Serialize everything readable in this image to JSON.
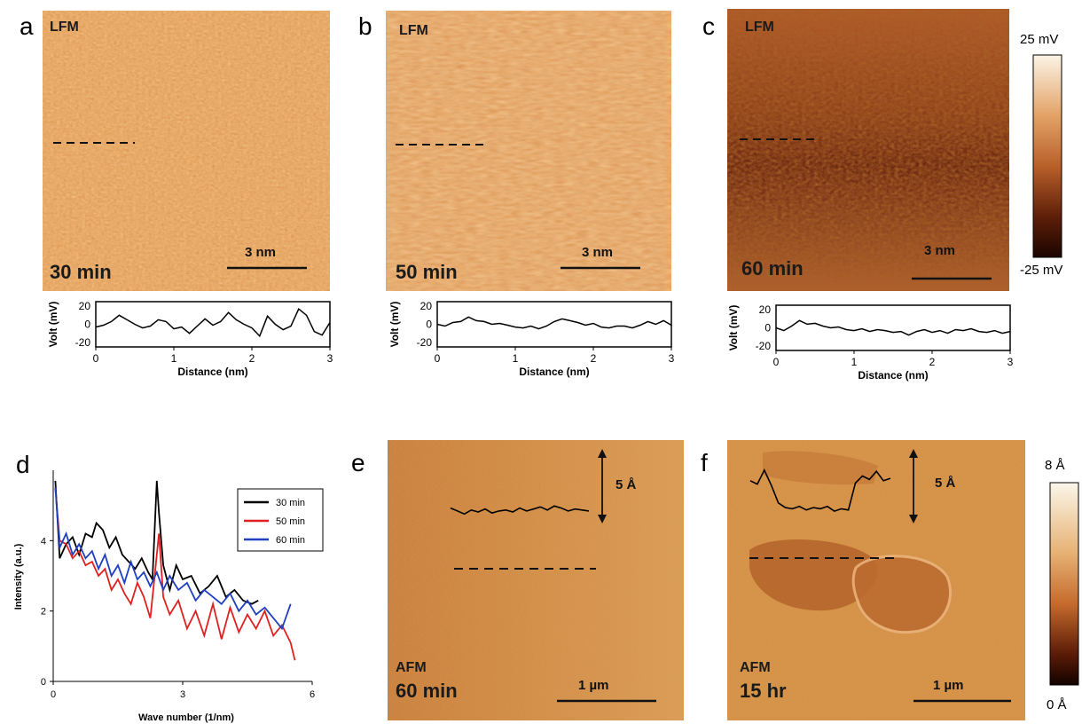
{
  "panels": {
    "a": {
      "letter": "a",
      "mode": "LFM",
      "time": "30 min",
      "scale": "3 nm"
    },
    "b": {
      "letter": "b",
      "mode": "LFM",
      "time": "50 min",
      "scale": "3 nm"
    },
    "c": {
      "letter": "c",
      "mode": "LFM",
      "time": "60 min",
      "scale": "3 nm"
    },
    "d": {
      "letter": "d"
    },
    "e": {
      "letter": "e",
      "mode": "AFM",
      "time": "60 min",
      "scale": "1 µm",
      "height": "5 Å"
    },
    "f": {
      "letter": "f",
      "mode": "AFM",
      "time": "15 hr",
      "scale": "1 µm",
      "height": "5 Å"
    }
  },
  "colorbar_lfm": {
    "max": "25 mV",
    "min": "-25 mV",
    "colors": [
      "#fbf4e6",
      "#e3a266",
      "#b8602a",
      "#5e1e08",
      "#1a0500"
    ]
  },
  "colorbar_afm": {
    "max": "8 Å",
    "min": "0 Å",
    "colors": [
      "#fbf6ea",
      "#e6b173",
      "#c56a2c",
      "#5a1b06",
      "#120300"
    ]
  },
  "profile_axes": {
    "xlabel": "Distance (nm)",
    "ylabel": "Volt (mV)",
    "yticks": [
      "20",
      "0",
      "-20"
    ],
    "xticks": [
      "0",
      "1",
      "2",
      "3"
    ]
  },
  "chart_data": [
    {
      "id": "profile-a",
      "type": "line",
      "xlabel": "Distance (nm)",
      "ylabel": "Volt (mV)",
      "xlim": [
        0,
        3
      ],
      "ylim": [
        -25,
        25
      ],
      "series": [
        {
          "x": [
            0,
            0.1,
            0.2,
            0.3,
            0.4,
            0.5,
            0.6,
            0.7,
            0.8,
            0.9,
            1.0,
            1.1,
            1.2,
            1.3,
            1.4,
            1.5,
            1.6,
            1.7,
            1.8,
            1.9,
            2.0,
            2.1,
            2.2,
            2.3,
            2.4,
            2.5,
            2.6,
            2.7,
            2.8,
            2.9,
            3.0
          ],
          "values": [
            -3,
            -1,
            3,
            10,
            5,
            0,
            -4,
            -2,
            5,
            3,
            -5,
            -3,
            -10,
            -2,
            6,
            -1,
            3,
            13,
            5,
            0,
            -4,
            -13,
            9,
            0,
            -6,
            -2,
            17,
            10,
            -8,
            -12,
            2
          ]
        }
      ]
    },
    {
      "id": "profile-b",
      "type": "line",
      "xlabel": "Distance (nm)",
      "ylabel": "Volt (mV)",
      "xlim": [
        0,
        3
      ],
      "ylim": [
        -25,
        25
      ],
      "series": [
        {
          "x": [
            0,
            0.1,
            0.2,
            0.3,
            0.4,
            0.5,
            0.6,
            0.7,
            0.8,
            0.9,
            1.0,
            1.1,
            1.2,
            1.3,
            1.4,
            1.5,
            1.6,
            1.7,
            1.8,
            1.9,
            2.0,
            2.1,
            2.2,
            2.3,
            2.4,
            2.5,
            2.6,
            2.7,
            2.8,
            2.9,
            3.0
          ],
          "values": [
            0,
            -2,
            2,
            3,
            8,
            4,
            3,
            0,
            1,
            -1,
            -3,
            -4,
            -2,
            -5,
            -2,
            3,
            6,
            4,
            2,
            -1,
            1,
            -3,
            -4,
            -2,
            -2,
            -4,
            -1,
            3,
            0,
            4,
            -1
          ]
        }
      ]
    },
    {
      "id": "profile-c",
      "type": "line",
      "xlabel": "Distance (nm)",
      "ylabel": "Volt (mV)",
      "xlim": [
        0,
        3
      ],
      "ylim": [
        -25,
        25
      ],
      "series": [
        {
          "x": [
            0,
            0.1,
            0.2,
            0.3,
            0.4,
            0.5,
            0.6,
            0.7,
            0.8,
            0.9,
            1.0,
            1.1,
            1.2,
            1.3,
            1.4,
            1.5,
            1.6,
            1.7,
            1.8,
            1.9,
            2.0,
            2.1,
            2.2,
            2.3,
            2.4,
            2.5,
            2.6,
            2.7,
            2.8,
            2.9,
            3.0
          ],
          "values": [
            0,
            -3,
            2,
            8,
            4,
            5,
            2,
            0,
            1,
            -2,
            -3,
            -1,
            -4,
            -2,
            -3,
            -5,
            -4,
            -8,
            -4,
            -2,
            -5,
            -3,
            -6,
            -2,
            -3,
            -1,
            -4,
            -5,
            -3,
            -6,
            -4
          ]
        }
      ]
    },
    {
      "id": "spectrum-d",
      "type": "line",
      "xlabel": "Wave number (1/nm)",
      "ylabel": "Intensity (a.u.)",
      "xlim": [
        0,
        6
      ],
      "ylim": [
        0,
        6
      ],
      "xticks": [
        "0",
        "3",
        "6"
      ],
      "yticks": [
        "0",
        "2",
        "4"
      ],
      "series": [
        {
          "name": "30 min",
          "color": "#000000",
          "x": [
            0.05,
            0.15,
            0.3,
            0.45,
            0.6,
            0.75,
            0.9,
            1.0,
            1.15,
            1.3,
            1.45,
            1.6,
            1.75,
            1.9,
            2.05,
            2.2,
            2.3,
            2.4,
            2.45,
            2.55,
            2.7,
            2.85,
            3.0,
            3.2,
            3.4,
            3.6,
            3.8,
            4.0,
            4.2,
            4.4,
            4.6,
            4.75
          ],
          "values": [
            5.7,
            3.5,
            3.9,
            4.1,
            3.6,
            4.2,
            4.1,
            4.5,
            4.3,
            3.8,
            4.1,
            3.6,
            3.4,
            3.2,
            3.5,
            3.1,
            2.9,
            5.7,
            4.8,
            3.3,
            2.6,
            3.3,
            2.9,
            3.0,
            2.5,
            2.7,
            3.0,
            2.4,
            2.6,
            2.3,
            2.2,
            2.3
          ]
        },
        {
          "name": "50 min",
          "color": "#e02020",
          "x": [
            0.05,
            0.15,
            0.3,
            0.45,
            0.6,
            0.75,
            0.9,
            1.05,
            1.2,
            1.35,
            1.5,
            1.65,
            1.8,
            1.95,
            2.1,
            2.25,
            2.35,
            2.45,
            2.55,
            2.7,
            2.9,
            3.1,
            3.3,
            3.5,
            3.7,
            3.9,
            4.1,
            4.3,
            4.5,
            4.7,
            4.9,
            5.1,
            5.3,
            5.5,
            5.6
          ],
          "values": [
            5.5,
            4.0,
            3.9,
            3.5,
            3.7,
            3.3,
            3.4,
            3.0,
            3.2,
            2.6,
            2.9,
            2.5,
            2.2,
            2.8,
            2.4,
            1.8,
            3.0,
            4.2,
            2.4,
            1.9,
            2.3,
            1.5,
            2.0,
            1.3,
            2.2,
            1.2,
            2.1,
            1.4,
            1.9,
            1.5,
            2.0,
            1.3,
            1.6,
            1.1,
            0.6
          ]
        },
        {
          "name": "60 min",
          "color": "#1f3fbf",
          "x": [
            0.05,
            0.15,
            0.3,
            0.45,
            0.6,
            0.75,
            0.9,
            1.05,
            1.2,
            1.35,
            1.5,
            1.65,
            1.8,
            1.95,
            2.1,
            2.25,
            2.4,
            2.55,
            2.7,
            2.9,
            3.1,
            3.3,
            3.5,
            3.7,
            3.9,
            4.1,
            4.3,
            4.5,
            4.7,
            4.9,
            5.1,
            5.3,
            5.5
          ],
          "values": [
            5.5,
            3.8,
            4.2,
            3.6,
            3.9,
            3.5,
            3.7,
            3.2,
            3.6,
            3.0,
            3.3,
            2.8,
            3.4,
            2.9,
            3.1,
            2.7,
            3.1,
            2.6,
            3.0,
            2.6,
            2.8,
            2.3,
            2.6,
            2.4,
            2.2,
            2.5,
            2.0,
            2.3,
            1.9,
            2.1,
            1.8,
            1.5,
            2.2
          ]
        }
      ]
    },
    {
      "id": "afm-profile-e",
      "type": "line",
      "ylim": [
        0,
        5
      ],
      "series": [
        {
          "x": [
            0,
            0.05,
            0.1,
            0.15,
            0.2,
            0.25,
            0.3,
            0.35,
            0.4,
            0.45,
            0.5,
            0.55,
            0.6,
            0.65,
            0.7,
            0.75,
            0.8,
            0.85,
            0.9,
            0.95,
            1.0
          ],
          "values": [
            1.2,
            0.9,
            0.6,
            1.0,
            0.8,
            1.1,
            0.7,
            0.9,
            1.0,
            0.8,
            1.2,
            0.9,
            1.1,
            1.3,
            1.0,
            1.4,
            1.2,
            0.9,
            1.1,
            1.0,
            0.9
          ]
        }
      ]
    },
    {
      "id": "afm-profile-f",
      "type": "line",
      "ylim": [
        0,
        5
      ],
      "series": [
        {
          "x": [
            0,
            0.05,
            0.1,
            0.15,
            0.2,
            0.25,
            0.3,
            0.35,
            0.4,
            0.45,
            0.5,
            0.55,
            0.6,
            0.65,
            0.7,
            0.75,
            0.8,
            0.85,
            0.9,
            0.95,
            1.0
          ],
          "values": [
            3.2,
            2.9,
            4.1,
            2.8,
            1.3,
            0.9,
            0.8,
            1.0,
            0.7,
            0.9,
            0.8,
            1.0,
            0.6,
            0.8,
            0.7,
            3.0,
            3.6,
            3.3,
            4.0,
            3.2,
            3.4
          ]
        }
      ]
    }
  ]
}
